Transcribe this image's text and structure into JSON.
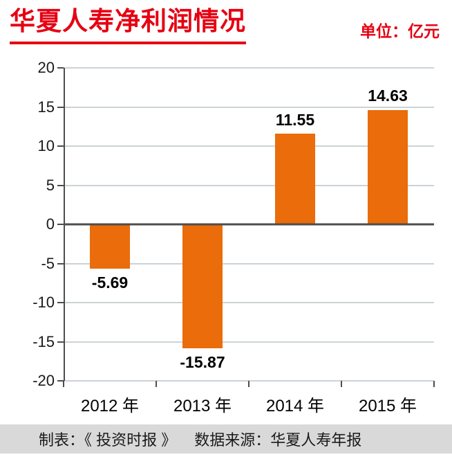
{
  "header": {
    "title": "华夏人寿净利润情况",
    "unit": "单位：亿元"
  },
  "footer": {
    "source_left": "制表：《 投资时报 》",
    "source_right": "数据来源：华夏人寿年报"
  },
  "colors": {
    "title_red": "#e60012",
    "bar_orange": "#ea6c0b",
    "gridline": "#ccd2d6",
    "axis": "#4d4d4d",
    "footer_bg": "#d9d9d9"
  },
  "chart_data": {
    "type": "bar",
    "title": "华夏人寿净利润情况",
    "unit": "亿元",
    "categories": [
      "2012 年",
      "2013 年",
      "2014 年",
      "2015 年"
    ],
    "values": [
      -5.69,
      -15.87,
      11.55,
      14.63
    ],
    "value_labels": [
      "-5.69",
      "-15.87",
      "11.55",
      "14.63"
    ],
    "ylim": [
      -20,
      20
    ],
    "yticks": [
      -20,
      -15,
      -10,
      -5,
      0,
      5,
      10,
      15,
      20
    ],
    "grid": true,
    "legend": false,
    "bar_color": "#ea6c0b",
    "xlabel": "",
    "ylabel": ""
  }
}
